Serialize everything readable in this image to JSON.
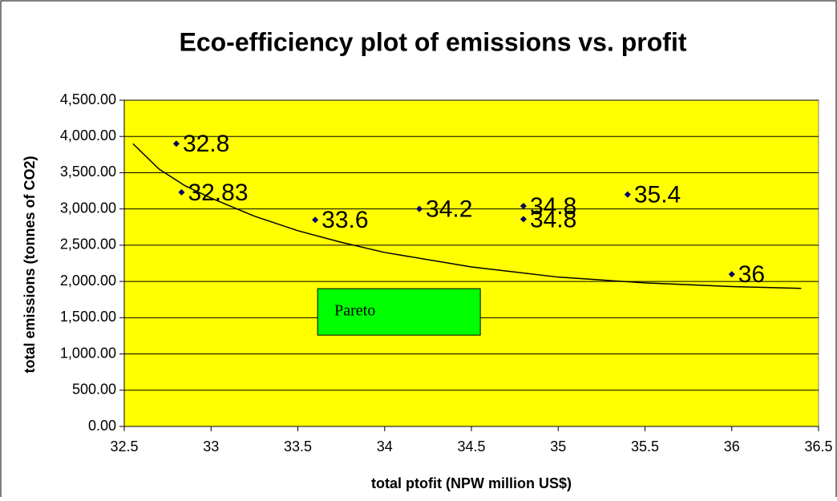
{
  "chart_data": {
    "type": "scatter",
    "title": "Eco-efficiency plot of emissions vs. profit",
    "x_label": "total ptofit (NPW million US$)",
    "y_label": "total emissions (tonnes of CO2)",
    "series": [
      {
        "color": "#000066",
        "x": [
          32.8,
          32.83,
          33.6,
          34.2,
          34.8,
          34.8,
          35.4,
          36
        ],
        "values": [
          3900,
          3230,
          2850,
          3000,
          3040,
          2860,
          3200,
          2100
        ]
      }
    ],
    "trendline": {
      "color": "#000000",
      "x": [
        32.55,
        32.7,
        32.85,
        33,
        33.25,
        33.5,
        33.75,
        34,
        34.5,
        35,
        35.5,
        36,
        36.4
      ],
      "values": [
        3900,
        3550,
        3320,
        3150,
        2900,
        2700,
        2540,
        2400,
        2200,
        2060,
        1980,
        1930,
        1905
      ]
    },
    "annotations": [
      {
        "text": "Pareto",
        "x": 33.6,
        "y": 1580,
        "color": "#00ff00"
      }
    ],
    "plot_background": "#ffff00",
    "grid": true,
    "xlim": [
      32.5,
      36.5
    ],
    "xticks": [
      32.5,
      33,
      33.5,
      34,
      34.5,
      35,
      35.5,
      36,
      36.5
    ],
    "ylim": [
      0,
      4500
    ],
    "yticks": [
      {
        "value": 0,
        "label": "0.00"
      },
      {
        "value": 500,
        "label": "500.00"
      },
      {
        "value": 1000,
        "label": "1,000.00"
      },
      {
        "value": 1500,
        "label": "1,500.00"
      },
      {
        "value": 2000,
        "label": "2,000.00"
      },
      {
        "value": 2500,
        "label": "2,500.00"
      },
      {
        "value": 3000,
        "label": "3,000.00"
      },
      {
        "value": 3500,
        "label": "3,500.00"
      },
      {
        "value": 4000,
        "label": "4,000.00"
      },
      {
        "value": 4500,
        "label": "4,500.00"
      }
    ]
  }
}
